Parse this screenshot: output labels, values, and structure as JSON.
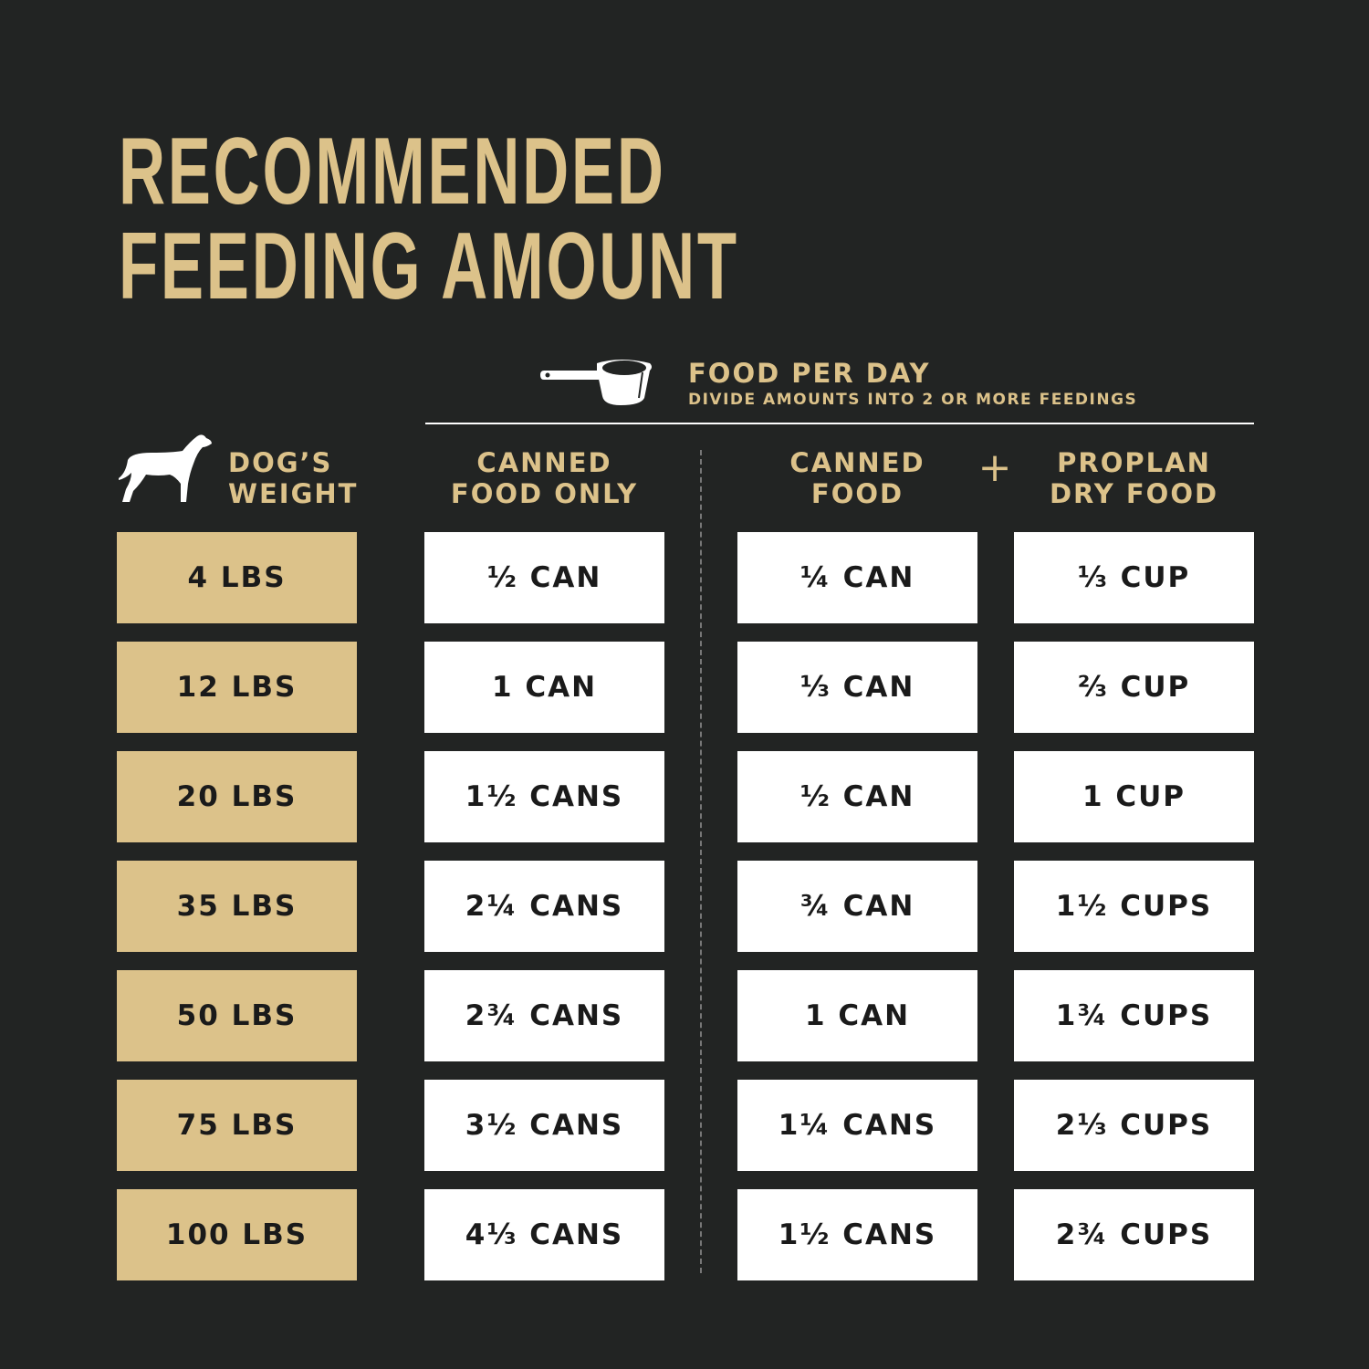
{
  "title": {
    "line1": "RECOMMENDED",
    "line2": "FEEDING AMOUNT"
  },
  "food_per_day": {
    "heading": "FOOD PER DAY",
    "subheading": "DIVIDE AMOUNTS INTO 2 OR MORE FEEDINGS",
    "icon": "measuring-cup-icon"
  },
  "columns": {
    "weight": {
      "line1": "DOG’S",
      "line2": "WEIGHT",
      "icon": "dog-icon"
    },
    "canned_only": {
      "line1": "CANNED",
      "line2": "FOOD ONLY"
    },
    "canned_combo": {
      "line1": "CANNED",
      "line2": "FOOD"
    },
    "plus": "+",
    "dry_combo": {
      "line1": "PROPLAN",
      "line2": "DRY FOOD"
    }
  },
  "rows": [
    {
      "weight": "4 LBS",
      "canned_only": "½ CAN",
      "canned_combo": "¼ CAN",
      "dry_combo": "⅓ CUP"
    },
    {
      "weight": "12 LBS",
      "canned_only": "1 CAN",
      "canned_combo": "⅓ CAN",
      "dry_combo": "⅔ CUP"
    },
    {
      "weight": "20 LBS",
      "canned_only": "1½ CANS",
      "canned_combo": "½ CAN",
      "dry_combo": "1 CUP"
    },
    {
      "weight": "35 LBS",
      "canned_only": "2¼ CANS",
      "canned_combo": "¾ CAN",
      "dry_combo": "1½ CUPS"
    },
    {
      "weight": "50 LBS",
      "canned_only": "2¾ CANS",
      "canned_combo": "1 CAN",
      "dry_combo": "1¾ CUPS"
    },
    {
      "weight": "75 LBS",
      "canned_only": "3½ CANS",
      "canned_combo": "1¼ CANS",
      "dry_combo": "2⅓ CUPS"
    },
    {
      "weight": "100 LBS",
      "canned_only": "4⅓ CANS",
      "canned_combo": "1½ CANS",
      "dry_combo": "2¾ CUPS"
    }
  ],
  "colors": {
    "background": "#222423",
    "gold": "#dcc28a",
    "white": "#ffffff",
    "text_dark": "#1a1a1a"
  }
}
